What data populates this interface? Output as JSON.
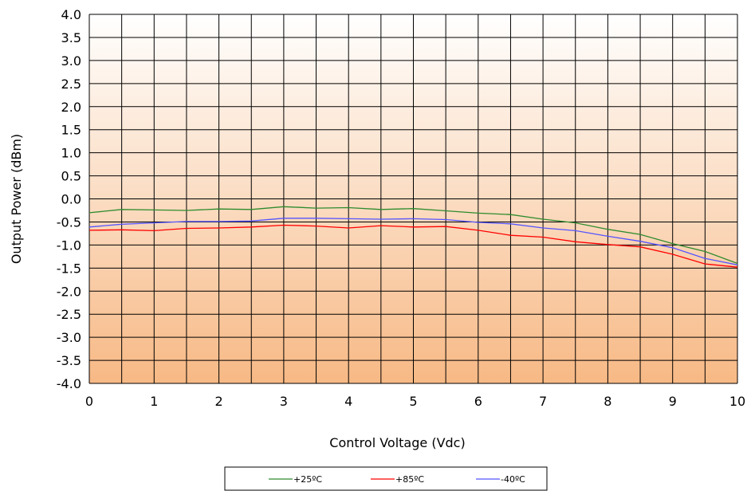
{
  "chart_data": {
    "type": "line",
    "xlabel": "Control Voltage (Vdc)",
    "ylabel": "Output Power (dBm)",
    "xlim": [
      0,
      10
    ],
    "ylim": [
      -4.0,
      4.0
    ],
    "xticks": [
      0,
      1,
      2,
      3,
      4,
      5,
      6,
      7,
      8,
      9,
      10
    ],
    "yticks": [
      -4.0,
      -3.5,
      -3.0,
      -2.5,
      -2.0,
      -1.5,
      -1.0,
      -0.5,
      0.0,
      0.5,
      1.0,
      1.5,
      2.0,
      2.5,
      3.0,
      3.5,
      4.0
    ],
    "xtick_labels": [
      "0",
      "1",
      "2",
      "3",
      "4",
      "5",
      "6",
      "7",
      "8",
      "9",
      "10"
    ],
    "ytick_labels": [
      "-4.0",
      "-3.5",
      "-3.0",
      "-2.5",
      "-2.0",
      "-1.5",
      "-1.0",
      "-0.5",
      "0.0",
      "0.5",
      "1.0",
      "1.5",
      "2.0",
      "2.5",
      "3.0",
      "3.5",
      "4.0"
    ],
    "grid": true,
    "legend_position": "bottom",
    "x": [
      0,
      0.5,
      1,
      1.5,
      2,
      2.5,
      3,
      3.5,
      4,
      4.5,
      5,
      5.5,
      6,
      6.5,
      7,
      7.5,
      8,
      8.5,
      9,
      9.5,
      10
    ],
    "series": [
      {
        "name": "+25ºC",
        "color": "#2e8b2e",
        "values": [
          -0.3,
          -0.23,
          -0.24,
          -0.25,
          -0.22,
          -0.23,
          -0.17,
          -0.2,
          -0.19,
          -0.23,
          -0.21,
          -0.26,
          -0.31,
          -0.34,
          -0.44,
          -0.52,
          -0.66,
          -0.77,
          -0.97,
          -1.14,
          -1.4
        ]
      },
      {
        "name": "+85ºC",
        "color": "#ff0000",
        "values": [
          -0.68,
          -0.67,
          -0.69,
          -0.64,
          -0.63,
          -0.61,
          -0.57,
          -0.59,
          -0.63,
          -0.58,
          -0.61,
          -0.6,
          -0.68,
          -0.79,
          -0.83,
          -0.93,
          -0.99,
          -1.04,
          -1.2,
          -1.41,
          -1.48
        ]
      },
      {
        "name": "-40ºC",
        "color": "#5555ff",
        "values": [
          -0.61,
          -0.55,
          -0.52,
          -0.49,
          -0.49,
          -0.48,
          -0.42,
          -0.42,
          -0.43,
          -0.44,
          -0.43,
          -0.45,
          -0.51,
          -0.54,
          -0.63,
          -0.69,
          -0.81,
          -0.92,
          -1.06,
          -1.29,
          -1.43
        ]
      }
    ],
    "background": {
      "gradient_top": "#ffffff",
      "gradient_bottom": "#f7b985",
      "grid_color": "#000000"
    }
  }
}
